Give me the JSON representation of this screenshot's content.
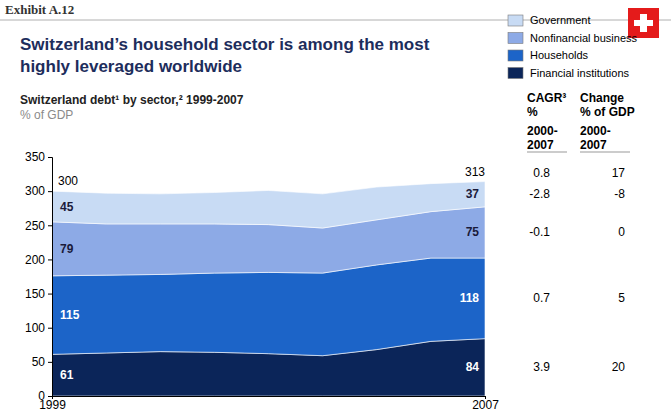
{
  "chart_data": {
    "type": "area",
    "stacked": true,
    "exhibit": "Exhibit A.12",
    "title": "Switzerland’s household sector is among the most highly leveraged worldwide",
    "subtitle": "Switzerland debt¹ by sector,² 1999-2007",
    "ylabel": "% of GDP",
    "x": [
      1999,
      2000,
      2001,
      2002,
      2003,
      2004,
      2005,
      2006,
      2007
    ],
    "xlim": [
      1999,
      2007
    ],
    "xticks": [
      1999,
      2007
    ],
    "ylim": [
      0,
      350
    ],
    "yticks": [
      0,
      50,
      100,
      150,
      200,
      250,
      300,
      350
    ],
    "grid": false,
    "legend": "right",
    "data_labels": true,
    "series": [
      {
        "name": "Financial institutions",
        "color": "#0b2559",
        "values": [
          61,
          63,
          65,
          64,
          62,
          59,
          68,
          80,
          84
        ],
        "value_labels": [
          "61",
          null,
          null,
          null,
          null,
          null,
          null,
          null,
          "84"
        ],
        "cagr": 3.9,
        "change": 20
      },
      {
        "name": "Households",
        "color": "#1c64c8",
        "values": [
          115,
          114,
          113,
          116,
          119,
          121,
          124,
          122,
          118
        ],
        "value_labels": [
          "115",
          null,
          null,
          null,
          null,
          null,
          null,
          null,
          "118"
        ],
        "cagr": 0.7,
        "change": 5
      },
      {
        "name": "Nonfinancial business",
        "color": "#8daae6",
        "values": [
          79,
          75,
          74,
          72,
          70,
          66,
          66,
          68,
          75
        ],
        "value_labels": [
          "79",
          null,
          null,
          null,
          null,
          null,
          null,
          null,
          "75"
        ],
        "cagr": -0.1,
        "change": 0
      },
      {
        "name": "Government",
        "color": "#c8dbf4",
        "values": [
          45,
          45,
          44,
          46,
          50,
          50,
          48,
          41,
          37
        ],
        "value_labels": [
          "45",
          null,
          null,
          null,
          null,
          null,
          null,
          null,
          "37"
        ],
        "cagr": -2.8,
        "change": -8
      }
    ],
    "totals": {
      "x": [
        1999,
        2007
      ],
      "values": [
        300,
        313
      ],
      "cagr": 0.8,
      "change": 17
    },
    "columns": [
      {
        "title": "CAGR³",
        "unit": "%",
        "period": "2000-2007"
      },
      {
        "title": "Change",
        "unit": "% of GDP",
        "period": "2000-2007"
      }
    ]
  }
}
